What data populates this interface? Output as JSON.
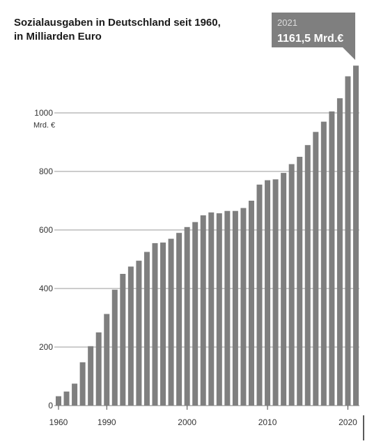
{
  "chart_data": {
    "type": "bar",
    "title_line1": "Sozialausgaben in Deutschland seit 1960,",
    "title_line2": "in Milliarden Euro",
    "unit_label": "Mrd. €",
    "callout": {
      "year": "2021",
      "value": "1161,5 Mrd.€"
    },
    "ylim": [
      0,
      1200
    ],
    "yticks": [
      "0",
      "200",
      "400",
      "600",
      "800",
      "1000"
    ],
    "xticks": [
      "1960",
      "1990",
      "2000",
      "2010",
      "2020"
    ],
    "grid": true,
    "bar_color": "#7f7f7f",
    "grid_color": "#9a9a9a",
    "callout_color": "#7f7f7f",
    "categories": [
      "1960",
      "1965",
      "1970",
      "1975",
      "1980",
      "1985",
      "1990",
      "1991",
      "1992",
      "1993",
      "1994",
      "1995",
      "1996",
      "1997",
      "1998",
      "1999",
      "2000",
      "2001",
      "2002",
      "2003",
      "2004",
      "2005",
      "2006",
      "2007",
      "2008",
      "2009",
      "2010",
      "2011",
      "2012",
      "2013",
      "2014",
      "2015",
      "2016",
      "2017",
      "2018",
      "2019",
      "2020",
      "2021"
    ],
    "values": [
      32,
      48,
      75,
      148,
      203,
      250,
      313,
      396,
      450,
      475,
      495,
      525,
      555,
      557,
      570,
      590,
      610,
      627,
      650,
      660,
      657,
      665,
      665,
      675,
      700,
      755,
      770,
      773,
      795,
      825,
      850,
      890,
      935,
      970,
      1005,
      1050,
      1125,
      1161.5
    ]
  }
}
